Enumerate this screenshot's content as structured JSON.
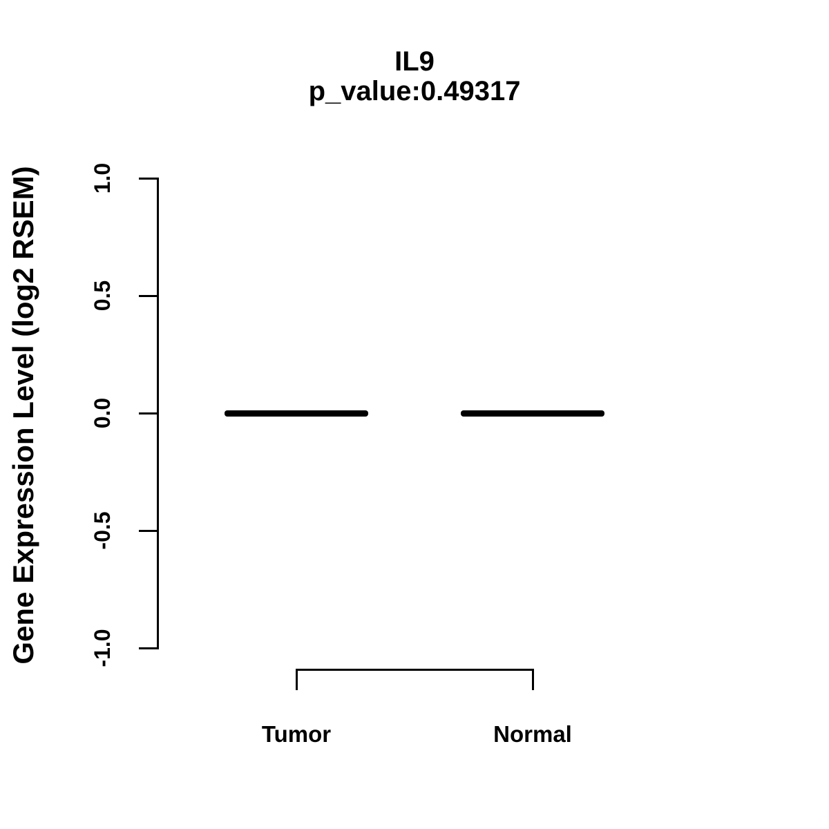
{
  "page": {
    "background": "#ffffff",
    "ink_color": "#000000"
  },
  "chart_data": {
    "type": "boxplot",
    "title": "IL9",
    "subtitle": "p_value:0.49317",
    "ylabel": "Gene Expression Level (log2 RSEM)",
    "xlabel": "",
    "categories": [
      "Tumor",
      "Normal"
    ],
    "series": [
      {
        "name": "Tumor",
        "median": 0.0,
        "q1": 0.0,
        "q3": 0.0,
        "whisker_low": 0.0,
        "whisker_high": 0.0
      },
      {
        "name": "Normal",
        "median": 0.0,
        "q1": 0.0,
        "q3": 0.0,
        "whisker_low": 0.0,
        "whisker_high": 0.0
      }
    ],
    "ylim": [
      -1.0,
      1.0
    ],
    "yticks": [
      -1.0,
      -0.5,
      0.0,
      0.5,
      1.0
    ],
    "ytick_labels": [
      "-1.0",
      "-0.5",
      "0.0",
      "0.5",
      "1.0"
    ],
    "grid": false,
    "legend_position": "none",
    "box_color": "#000000"
  }
}
